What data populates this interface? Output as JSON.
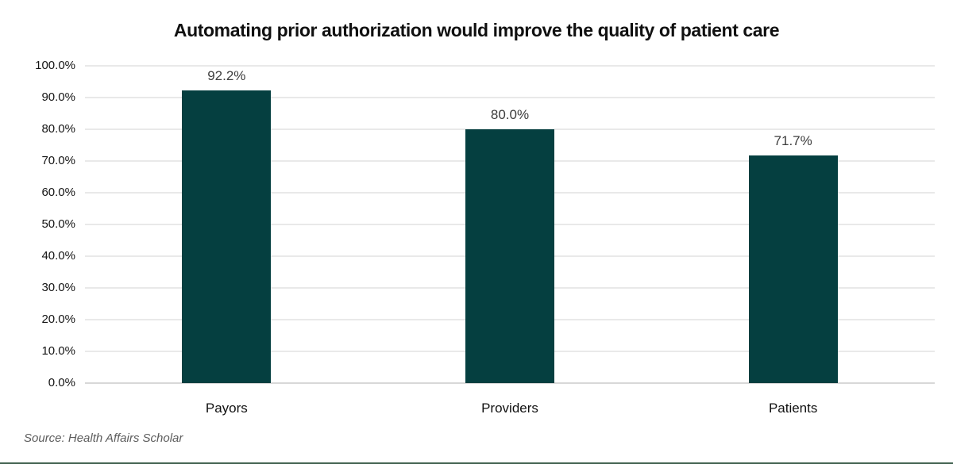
{
  "chart_data": {
    "type": "bar",
    "title": "Automating prior authorization would improve the quality of patient care",
    "categories": [
      "Payors",
      "Providers",
      "Patients"
    ],
    "values": [
      92.2,
      80.0,
      71.7
    ],
    "data_labels": [
      "92.2%",
      "80.0%",
      "71.7%"
    ],
    "y_tick_values": [
      100,
      90,
      80,
      70,
      60,
      50,
      40,
      30,
      20,
      10,
      0
    ],
    "y_tick_labels": [
      "100.0%",
      "90.0%",
      "80.0%",
      "70.0%",
      "60.0%",
      "50.0%",
      "40.0%",
      "30.0%",
      "20.0%",
      "10.0%",
      "0.0%"
    ],
    "ylim": [
      0,
      100
    ],
    "grid": true,
    "legend_position": "none",
    "xlabel": "",
    "ylabel": "",
    "bar_color": "#053f40",
    "grid_color": "#e9e9e9",
    "axis_line_color": "#d8d8d8",
    "data_label_color": "#3d3d3d",
    "source_note": "Source: Health Affairs Scholar",
    "bottom_border_color": "#40614f"
  }
}
